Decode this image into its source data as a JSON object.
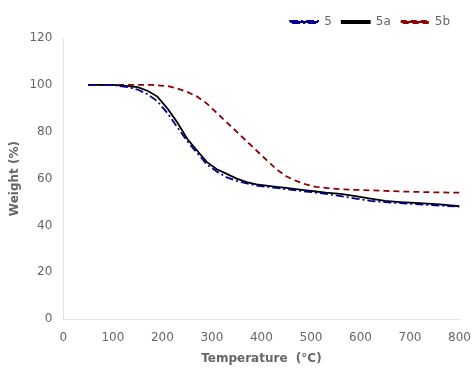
{
  "chart_data": {
    "type": "line",
    "xlabel": "Temperature  (°C)",
    "ylabel": "Weight (%)",
    "xlim": [
      0,
      800
    ],
    "ylim": [
      0,
      120
    ],
    "xticks": [
      0,
      100,
      200,
      300,
      400,
      500,
      600,
      700,
      800
    ],
    "yticks": [
      0,
      20,
      40,
      60,
      80,
      100,
      120
    ],
    "grid": false,
    "legend": "upper right",
    "series": [
      {
        "name": "5",
        "color": "#00008B",
        "line_style": "dashdot",
        "x": [
          50,
          100,
          130,
          150,
          170,
          190,
          210,
          230,
          250,
          270,
          290,
          310,
          330,
          350,
          370,
          390,
          410,
          430,
          450,
          470,
          490,
          510,
          530,
          560,
          590,
          620,
          650,
          680,
          720,
          760,
          800
        ],
        "values": [
          100,
          100,
          99,
          98,
          96,
          93,
          88,
          82,
          76,
          71,
          66,
          63,
          60.5,
          59,
          58,
          57,
          56.5,
          56,
          55.5,
          55,
          54.5,
          54,
          53.5,
          52.5,
          51.5,
          50.5,
          50,
          49.5,
          49,
          48.5,
          48
        ]
      },
      {
        "name": "5a",
        "color": "#000000",
        "line_style": "solid",
        "x": [
          50,
          100,
          130,
          150,
          170,
          190,
          210,
          230,
          250,
          270,
          290,
          310,
          330,
          350,
          370,
          390,
          410,
          430,
          450,
          470,
          490,
          510,
          530,
          560,
          590,
          620,
          650,
          680,
          720,
          760,
          800
        ],
        "values": [
          100,
          100,
          99.5,
          99,
          97.5,
          95,
          90,
          84,
          77,
          72,
          67,
          64,
          62,
          60,
          58.5,
          57.5,
          57,
          56.5,
          56,
          55.5,
          55,
          54.5,
          54,
          53.5,
          52.5,
          51.5,
          50.5,
          50,
          49.5,
          49,
          48.2
        ]
      },
      {
        "name": "5b",
        "color": "#8B0000",
        "line_style": "dashed",
        "x": [
          50,
          100,
          150,
          180,
          210,
          230,
          250,
          270,
          290,
          310,
          330,
          350,
          370,
          390,
          410,
          430,
          450,
          470,
          490,
          510,
          530,
          560,
          590,
          620,
          650,
          680,
          720,
          760,
          800
        ],
        "values": [
          100,
          100,
          100,
          100,
          99.5,
          98.5,
          97,
          95,
          92,
          88,
          84,
          80,
          76,
          72,
          68,
          64,
          61,
          59,
          57.5,
          56.5,
          56,
          55.5,
          55.2,
          55,
          54.8,
          54.5,
          54.3,
          54.1,
          54.0
        ]
      }
    ]
  }
}
